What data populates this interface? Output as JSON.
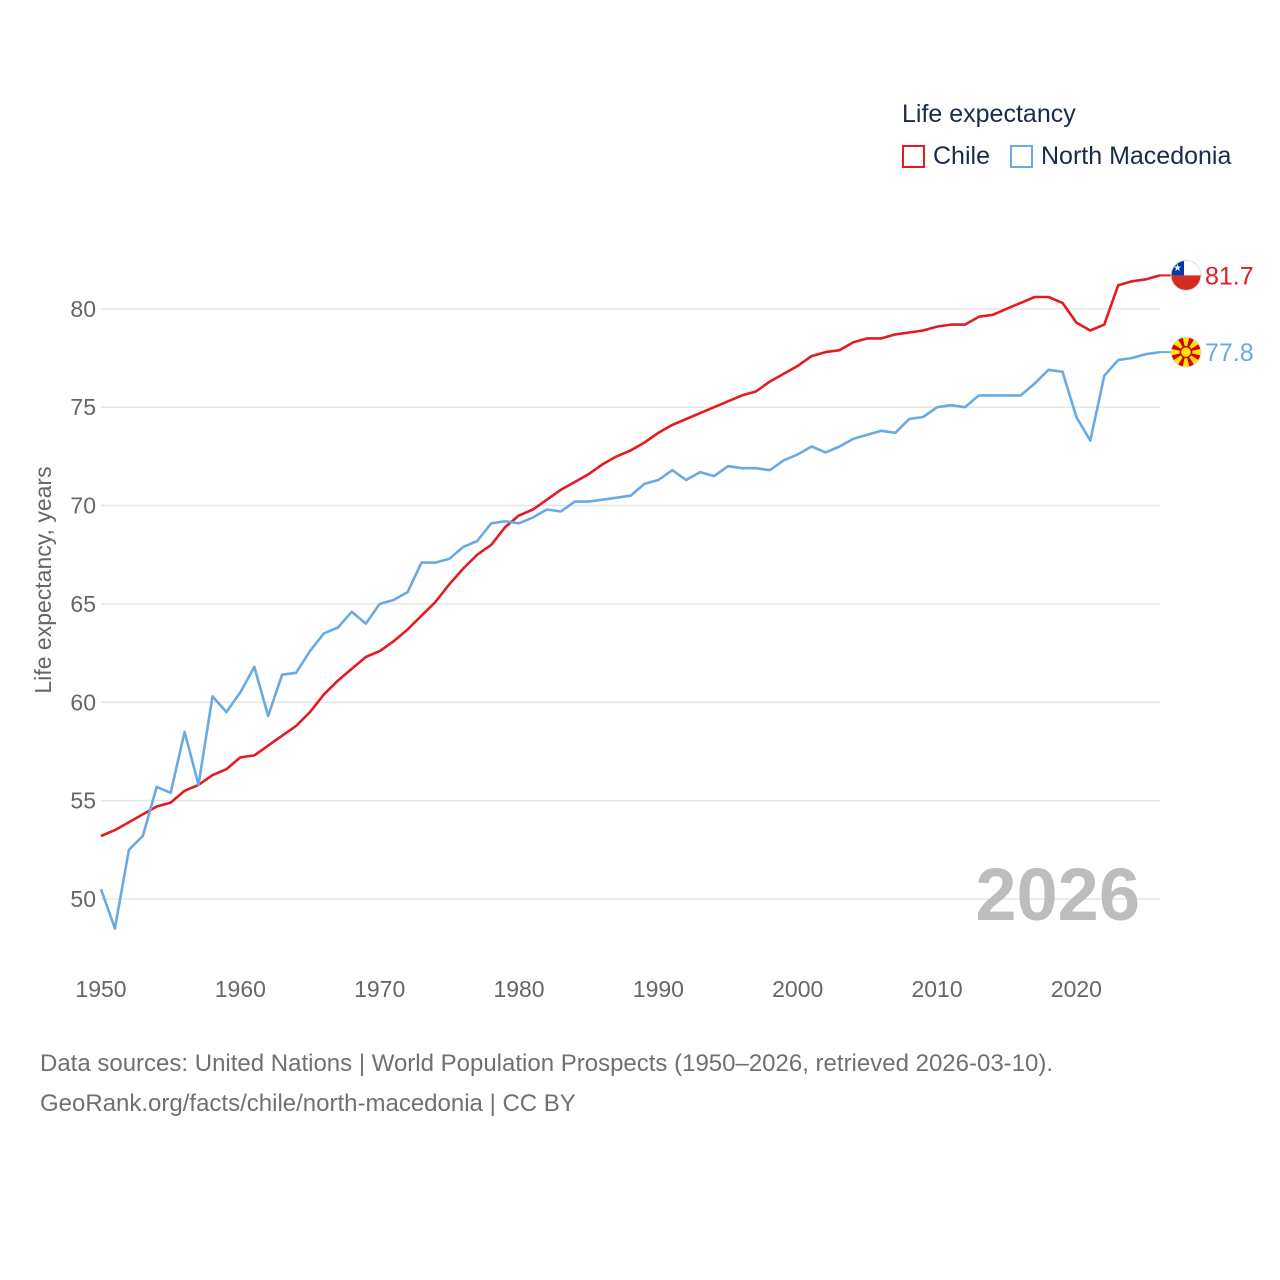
{
  "colors": {
    "chile": "#e31b23",
    "north_macedonia": "#6aaae4",
    "grid": "#e6e6e6",
    "axis_text": "#666666",
    "year_watermark": "#bdbdbd"
  },
  "chart_data": {
    "type": "line",
    "title": "Life expectancy",
    "ylabel": "Life expectancy, years",
    "xlabel": "",
    "xlim": [
      1950,
      2026
    ],
    "ylim": [
      47,
      83.5
    ],
    "x_ticks": [
      1950,
      1960,
      1970,
      1980,
      1990,
      2000,
      2010,
      2020
    ],
    "y_ticks": [
      50,
      55,
      60,
      65,
      70,
      75,
      80
    ],
    "grid": true,
    "legend_position": "top-right",
    "current_year_label": "2026",
    "series": [
      {
        "name": "Chile",
        "color": "#e31b23",
        "end_label": "81.7",
        "flag_icon": "chile-flag-icon",
        "x": [
          1950,
          1951,
          1952,
          1953,
          1954,
          1955,
          1956,
          1957,
          1958,
          1959,
          1960,
          1961,
          1962,
          1963,
          1964,
          1965,
          1966,
          1967,
          1968,
          1969,
          1970,
          1971,
          1972,
          1973,
          1974,
          1975,
          1976,
          1977,
          1978,
          1979,
          1980,
          1981,
          1982,
          1983,
          1984,
          1985,
          1986,
          1987,
          1988,
          1989,
          1990,
          1991,
          1992,
          1993,
          1994,
          1995,
          1996,
          1997,
          1998,
          1999,
          2000,
          2001,
          2002,
          2003,
          2004,
          2005,
          2006,
          2007,
          2008,
          2009,
          2010,
          2011,
          2012,
          2013,
          2014,
          2015,
          2016,
          2017,
          2018,
          2019,
          2020,
          2021,
          2022,
          2023,
          2024,
          2025,
          2026
        ],
        "values": [
          53.2,
          53.5,
          53.9,
          54.3,
          54.7,
          54.9,
          55.5,
          55.8,
          56.3,
          56.6,
          57.2,
          57.3,
          57.8,
          58.3,
          58.8,
          59.5,
          60.4,
          61.1,
          61.7,
          62.3,
          62.6,
          63.1,
          63.7,
          64.4,
          65.1,
          66.0,
          66.8,
          67.5,
          68.0,
          68.9,
          69.5,
          69.8,
          70.3,
          70.8,
          71.2,
          71.6,
          72.1,
          72.5,
          72.8,
          73.2,
          73.7,
          74.1,
          74.4,
          74.7,
          75.0,
          75.3,
          75.6,
          75.8,
          76.3,
          76.7,
          77.1,
          77.6,
          77.8,
          77.9,
          78.3,
          78.5,
          78.5,
          78.7,
          78.8,
          78.9,
          79.1,
          79.2,
          79.2,
          79.6,
          79.7,
          80.0,
          80.3,
          80.6,
          80.6,
          80.3,
          79.3,
          78.9,
          79.2,
          81.2,
          81.4,
          81.5,
          81.7
        ]
      },
      {
        "name": "North Macedonia",
        "color": "#6aaae4",
        "end_label": "77.8",
        "flag_icon": "north-macedonia-flag-icon",
        "x": [
          1950,
          1951,
          1952,
          1953,
          1954,
          1955,
          1956,
          1957,
          1958,
          1959,
          1960,
          1961,
          1962,
          1963,
          1964,
          1965,
          1966,
          1967,
          1968,
          1969,
          1970,
          1971,
          1972,
          1973,
          1974,
          1975,
          1976,
          1977,
          1978,
          1979,
          1980,
          1981,
          1982,
          1983,
          1984,
          1985,
          1986,
          1987,
          1988,
          1989,
          1990,
          1991,
          1992,
          1993,
          1994,
          1995,
          1996,
          1997,
          1998,
          1999,
          2000,
          2001,
          2002,
          2003,
          2004,
          2005,
          2006,
          2007,
          2008,
          2009,
          2010,
          2011,
          2012,
          2013,
          2014,
          2015,
          2016,
          2017,
          2018,
          2019,
          2020,
          2021,
          2022,
          2023,
          2024,
          2025,
          2026
        ],
        "values": [
          50.5,
          48.5,
          52.5,
          53.2,
          55.7,
          55.4,
          58.5,
          55.8,
          60.3,
          59.5,
          60.5,
          61.8,
          59.3,
          61.4,
          61.5,
          62.6,
          63.5,
          63.8,
          64.6,
          64.0,
          65.0,
          65.2,
          65.6,
          67.1,
          67.1,
          67.3,
          67.9,
          68.2,
          69.1,
          69.2,
          69.1,
          69.4,
          69.8,
          69.7,
          70.2,
          70.2,
          70.3,
          70.4,
          70.5,
          71.1,
          71.3,
          71.8,
          71.3,
          71.7,
          71.5,
          72.0,
          71.9,
          71.9,
          71.8,
          72.3,
          72.6,
          73.0,
          72.7,
          73.0,
          73.4,
          73.6,
          73.8,
          73.7,
          74.4,
          74.5,
          75.0,
          75.1,
          75.0,
          75.6,
          75.6,
          75.6,
          75.6,
          76.2,
          76.9,
          76.8,
          74.5,
          73.3,
          76.6,
          77.4,
          77.5,
          77.7,
          77.8
        ]
      }
    ]
  },
  "legend": {
    "title": "Life expectancy",
    "items": [
      "Chile",
      "North Macedonia"
    ]
  },
  "source": {
    "line1": "Data sources: United Nations | World Population Prospects (1950–2026, retrieved 2026-03-10).",
    "line2": "GeoRank.org/facts/chile/north-macedonia | CC BY"
  }
}
